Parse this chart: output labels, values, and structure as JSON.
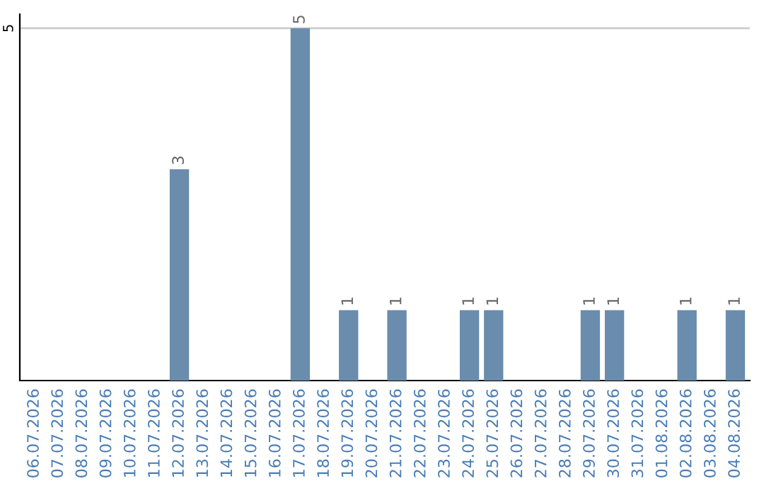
{
  "chart_data": {
    "type": "bar",
    "categories": [
      "06.07.2026",
      "07.07.2026",
      "08.07.2026",
      "09.07.2026",
      "10.07.2026",
      "11.07.2026",
      "12.07.2026",
      "13.07.2026",
      "14.07.2026",
      "15.07.2026",
      "16.07.2026",
      "17.07.2026",
      "18.07.2026",
      "19.07.2026",
      "20.07.2026",
      "21.07.2026",
      "22.07.2026",
      "23.07.2026",
      "24.07.2026",
      "25.07.2026",
      "26.07.2026",
      "27.07.2026",
      "28.07.2026",
      "29.07.2026",
      "30.07.2026",
      "31.07.2026",
      "01.08.2026",
      "02.08.2026",
      "03.08.2026",
      "04.08.2026"
    ],
    "values": [
      0,
      0,
      0,
      0,
      0,
      0,
      3,
      0,
      0,
      0,
      0,
      5,
      0,
      1,
      0,
      1,
      0,
      0,
      1,
      1,
      0,
      0,
      0,
      1,
      1,
      0,
      0,
      1,
      0,
      1
    ],
    "value_labels": [
      null,
      null,
      null,
      null,
      null,
      null,
      "3",
      null,
      null,
      null,
      null,
      "5",
      null,
      "1",
      null,
      "1",
      null,
      null,
      "1",
      "1",
      null,
      null,
      null,
      "1",
      "1",
      null,
      null,
      "1",
      null,
      "1"
    ],
    "color": "#6a8cad",
    "ylim": [
      0,
      5.2
    ],
    "yticks": [
      5
    ],
    "grid": "y",
    "legend": false
  }
}
